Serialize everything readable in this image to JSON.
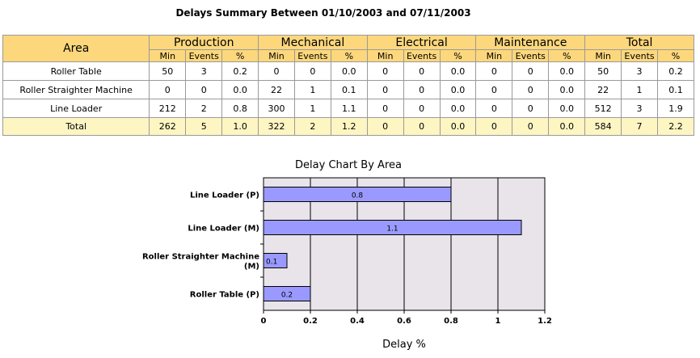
{
  "title": "Delays Summary Between 01/10/2003 and 07/11/2003",
  "table": {
    "area_header": "Area",
    "groups": [
      "Production",
      "Mechanical",
      "Electrical",
      "Maintenance",
      "Total"
    ],
    "subheaders": [
      "Min",
      "Events",
      "%"
    ],
    "rows": [
      {
        "area": "Roller Table",
        "cells": [
          "50",
          "3",
          "0.2",
          "0",
          "0",
          "0.0",
          "0",
          "0",
          "0.0",
          "0",
          "0",
          "0.0",
          "50",
          "3",
          "0.2"
        ]
      },
      {
        "area": "Roller Straighter Machine",
        "cells": [
          "0",
          "0",
          "0.0",
          "22",
          "1",
          "0.1",
          "0",
          "0",
          "0.0",
          "0",
          "0",
          "0.0",
          "22",
          "1",
          "0.1"
        ]
      },
      {
        "area": "Line Loader",
        "cells": [
          "212",
          "2",
          "0.8",
          "300",
          "1",
          "1.1",
          "0",
          "0",
          "0.0",
          "0",
          "0",
          "0.0",
          "512",
          "3",
          "1.9"
        ]
      }
    ],
    "total": {
      "area": "Total",
      "cells": [
        "262",
        "5",
        "1.0",
        "322",
        "2",
        "1.2",
        "0",
        "0",
        "0.0",
        "0",
        "0",
        "0.0",
        "584",
        "7",
        "2.2"
      ]
    }
  },
  "chart_data": {
    "type": "bar",
    "orientation": "horizontal",
    "title": "Delay Chart By Area",
    "xlabel": "Delay %",
    "ylabel": "",
    "categories": [
      "Line Loader (P)",
      "Line Loader (M)",
      "Roller Straighter Machine (M)",
      "Roller Table (P)"
    ],
    "values": [
      0.8,
      1.1,
      0.1,
      0.2
    ],
    "data_labels": [
      "0.8",
      "1.1",
      "0.1",
      "0.2"
    ],
    "xlim": [
      0,
      1.2
    ],
    "xticks": [
      "0",
      "0.2",
      "0.4",
      "0.6",
      "0.8",
      "1",
      "1.2"
    ],
    "grid": true,
    "bar_color": "#9999ff",
    "plot_background": "#e8e4ea"
  }
}
